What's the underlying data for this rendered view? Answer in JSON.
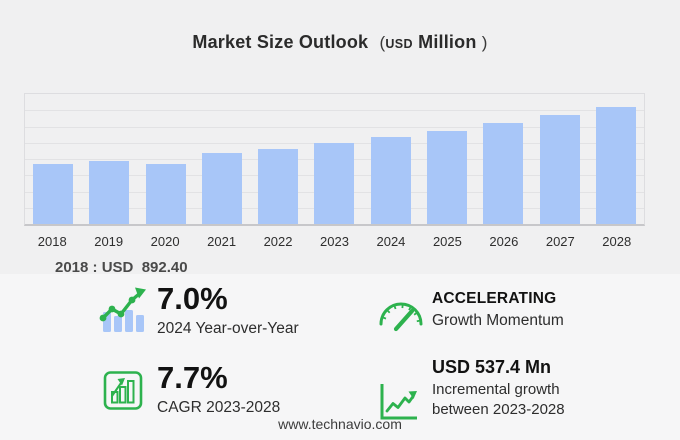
{
  "title": {
    "main": "Market Size Outlook",
    "open_paren": "(",
    "currency": "USD",
    "unit": "Million",
    "close_paren": ")"
  },
  "chart_data": {
    "type": "bar",
    "title": "Market Size Outlook (USD Million)",
    "categories": [
      "2018",
      "2019",
      "2020",
      "2021",
      "2022",
      "2023",
      "2024",
      "2025",
      "2026",
      "2027",
      "2028"
    ],
    "values": [
      892.4,
      938,
      890,
      1045,
      1115,
      1195.6,
      1279.3,
      1373,
      1485,
      1605,
      1733
    ],
    "unit": "USD Million",
    "ylim": [
      0,
      1920
    ],
    "gridline_intervals": 8,
    "grid": true,
    "legend": false,
    "bar_color": "#a8c6f8"
  },
  "chart_note": {
    "base_year_value": "2018 : USD  892.40"
  },
  "stats": [
    {
      "id": "yoy",
      "icon": "bar-trend-icon",
      "value": "7.0%",
      "label": "2024 Year-over-Year"
    },
    {
      "id": "momentum",
      "icon": "gauge-icon",
      "value": "ACCELERATING",
      "label": "Growth Momentum"
    },
    {
      "id": "cagr",
      "icon": "framed-bars-icon",
      "value": "7.7%",
      "label": "CAGR 2023-2028"
    },
    {
      "id": "incremental",
      "icon": "line-growth-icon",
      "value": "USD 537.4 Mn",
      "label": "Incremental growth between 2023-2028",
      "label_line1": "Incremental growth",
      "label_line2": "between 2023-2028"
    }
  ],
  "footer": {
    "website": "www.technavio.com"
  },
  "colors": {
    "bg": "#f0f0f1",
    "panel_bg": "#f6f6f7",
    "bar_blue": "#a8c6f8",
    "accent_green": "#2db24e",
    "grid_line": "#e2e2e4",
    "axis_line": "#c7c7ca",
    "text_dark": "#222222"
  }
}
